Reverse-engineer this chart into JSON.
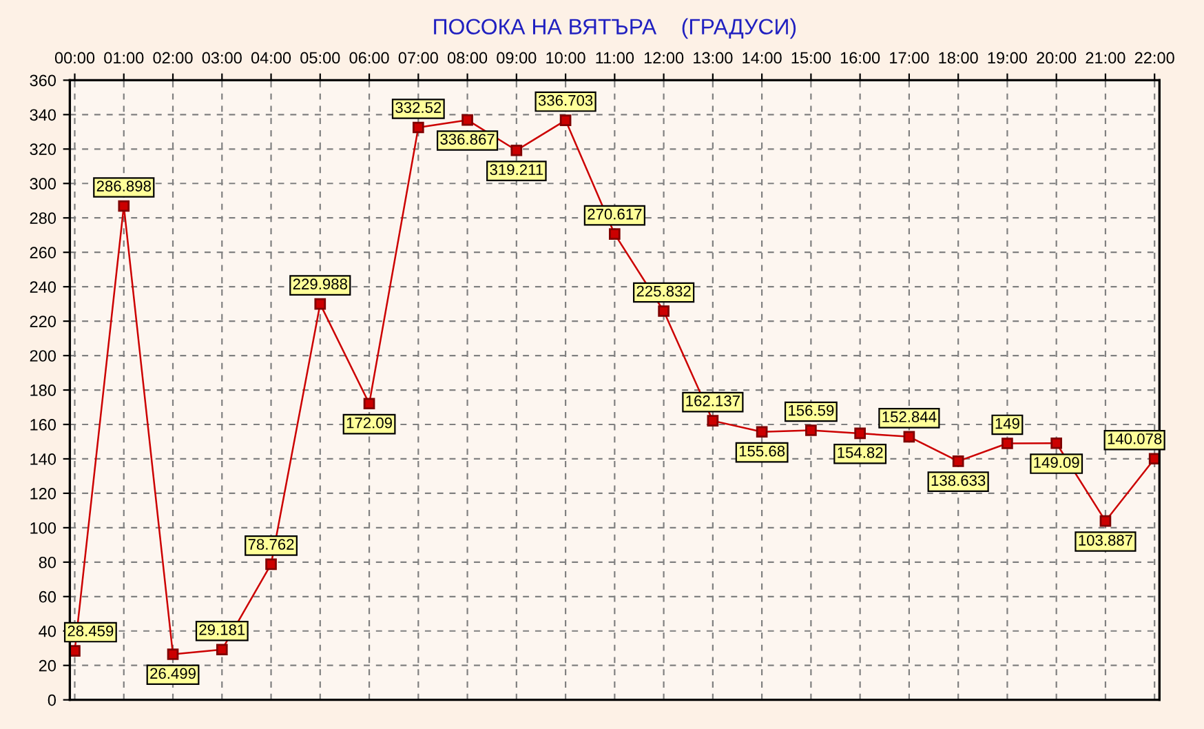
{
  "chart_data": {
    "type": "line",
    "title": "ПОСОКА НА ВЯТЪРА    (ГРАДУСИ)",
    "categories": [
      "00:00",
      "01:00",
      "02:00",
      "03:00",
      "04:00",
      "05:00",
      "06:00",
      "07:00",
      "08:00",
      "09:00",
      "10:00",
      "11:00",
      "12:00",
      "13:00",
      "14:00",
      "15:00",
      "16:00",
      "17:00",
      "18:00",
      "19:00",
      "20:00",
      "21:00",
      "22:00"
    ],
    "series": [
      {
        "color": "#cc0000",
        "values": [
          28.459,
          286.898,
          26.499,
          29.181,
          78.762,
          229.988,
          172.09,
          332.52,
          336.867,
          319.211,
          336.703,
          270.617,
          225.832,
          162.137,
          155.68,
          156.59,
          154.82,
          152.844,
          138.633,
          149,
          149.09,
          103.887,
          140.078
        ]
      }
    ],
    "ylim": [
      0,
      360
    ],
    "yticks": [
      0,
      20,
      40,
      60,
      80,
      100,
      120,
      140,
      160,
      180,
      200,
      220,
      240,
      260,
      280,
      300,
      320,
      340,
      360
    ],
    "grid": true,
    "marker": "square",
    "line_style": "solid",
    "data_labels": true
  }
}
